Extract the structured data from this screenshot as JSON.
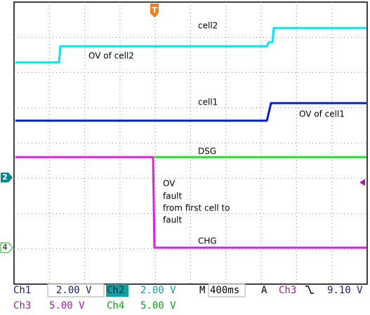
{
  "trace_labels": {
    "cell2": "cell2",
    "ov_cell2": "OV of cell2",
    "cell1": "cell1",
    "ov_cell1": "OV of cell1",
    "dsg": "DSG",
    "chg": "CHG",
    "fault_note": [
      "OV",
      "fault",
      "from first cell to",
      "fault"
    ]
  },
  "markers": {
    "trigger": "T",
    "ch2": "2",
    "ch4": "4"
  },
  "readouts": {
    "row1": {
      "ch1_label": "Ch1",
      "ch1_scale": "2.00 V",
      "ch2_label": "Ch2",
      "ch2_scale": "2.00 V",
      "time_label": "M",
      "time_scale": "400ms",
      "trigger_label": "A",
      "trigger_source": "Ch3",
      "trigger_level": "9.10 V"
    },
    "row2": {
      "ch3_label": "Ch3",
      "ch3_scale": "5.00 V",
      "ch4_label": "Ch4",
      "ch4_scale": "5.00 V"
    }
  }
}
